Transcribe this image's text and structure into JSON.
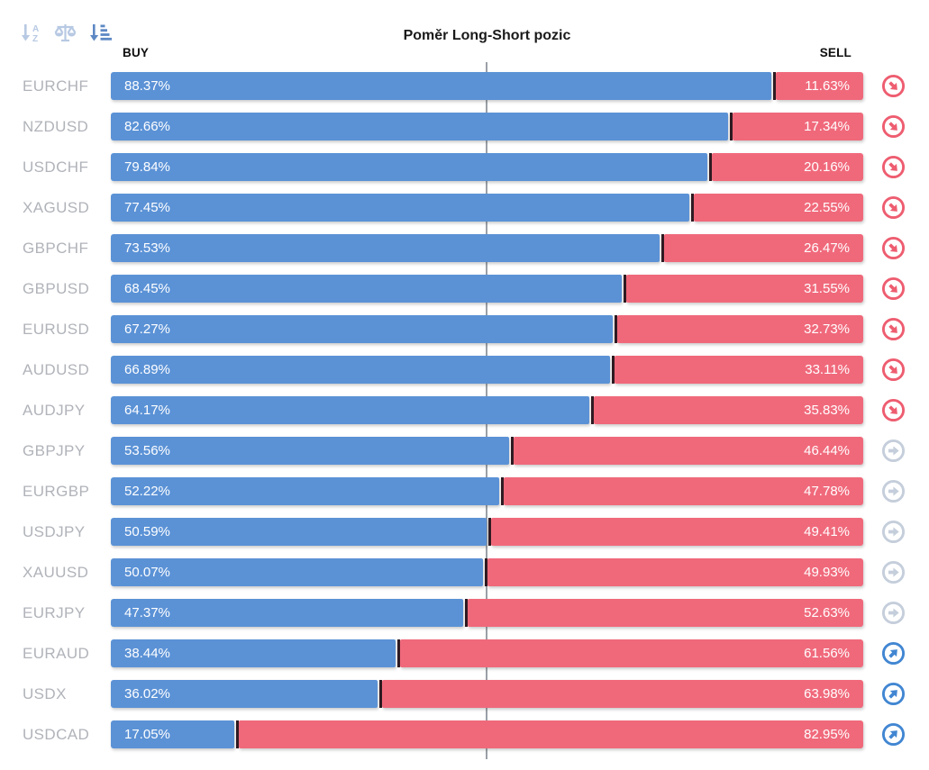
{
  "header": {
    "title": "Poměr Long-Short pozic",
    "buy_label": "BUY",
    "sell_label": "SELL",
    "sort_tools": [
      {
        "name": "sort-alphabetical",
        "active": false
      },
      {
        "name": "compare-balance",
        "active": false
      },
      {
        "name": "sort-by-amount",
        "active": true
      }
    ]
  },
  "colors": {
    "buy_bar": "#5b92d6",
    "sell_bar": "#f0697b",
    "bar_divider": "#2e1b22",
    "center_line": "#9aa0a6",
    "instrument_label": "#b0b3b9",
    "signal_down": "#ee5d70",
    "signal_flat": "#c5cedb",
    "signal_up": "#4186d2",
    "tool_inactive": "#b7c9e3",
    "tool_active": "#5d88c4"
  },
  "chart_data": {
    "type": "bar",
    "orientation": "horizontal-stacked",
    "title": "Poměr Long-Short pozic",
    "series_labels": [
      "BUY",
      "SELL"
    ],
    "xlim": [
      0,
      100
    ],
    "center_marker_pct": 50,
    "rows": [
      {
        "symbol": "EURCHF",
        "buy": 88.37,
        "sell": 11.63,
        "buy_text": "88.37%",
        "sell_text": "11.63%",
        "signal": "down"
      },
      {
        "symbol": "NZDUSD",
        "buy": 82.66,
        "sell": 17.34,
        "buy_text": "82.66%",
        "sell_text": "17.34%",
        "signal": "down"
      },
      {
        "symbol": "USDCHF",
        "buy": 79.84,
        "sell": 20.16,
        "buy_text": "79.84%",
        "sell_text": "20.16%",
        "signal": "down"
      },
      {
        "symbol": "XAGUSD",
        "buy": 77.45,
        "sell": 22.55,
        "buy_text": "77.45%",
        "sell_text": "22.55%",
        "signal": "down"
      },
      {
        "symbol": "GBPCHF",
        "buy": 73.53,
        "sell": 26.47,
        "buy_text": "73.53%",
        "sell_text": "26.47%",
        "signal": "down"
      },
      {
        "symbol": "GBPUSD",
        "buy": 68.45,
        "sell": 31.55,
        "buy_text": "68.45%",
        "sell_text": "31.55%",
        "signal": "down"
      },
      {
        "symbol": "EURUSD",
        "buy": 67.27,
        "sell": 32.73,
        "buy_text": "67.27%",
        "sell_text": "32.73%",
        "signal": "down"
      },
      {
        "symbol": "AUDUSD",
        "buy": 66.89,
        "sell": 33.11,
        "buy_text": "66.89%",
        "sell_text": "33.11%",
        "signal": "down"
      },
      {
        "symbol": "AUDJPY",
        "buy": 64.17,
        "sell": 35.83,
        "buy_text": "64.17%",
        "sell_text": "35.83%",
        "signal": "down"
      },
      {
        "symbol": "GBPJPY",
        "buy": 53.56,
        "sell": 46.44,
        "buy_text": "53.56%",
        "sell_text": "46.44%",
        "signal": "flat"
      },
      {
        "symbol": "EURGBP",
        "buy": 52.22,
        "sell": 47.78,
        "buy_text": "52.22%",
        "sell_text": "47.78%",
        "signal": "flat"
      },
      {
        "symbol": "USDJPY",
        "buy": 50.59,
        "sell": 49.41,
        "buy_text": "50.59%",
        "sell_text": "49.41%",
        "signal": "flat"
      },
      {
        "symbol": "XAUUSD",
        "buy": 50.07,
        "sell": 49.93,
        "buy_text": "50.07%",
        "sell_text": "49.93%",
        "signal": "flat"
      },
      {
        "symbol": "EURJPY",
        "buy": 47.37,
        "sell": 52.63,
        "buy_text": "47.37%",
        "sell_text": "52.63%",
        "signal": "flat"
      },
      {
        "symbol": "EURAUD",
        "buy": 38.44,
        "sell": 61.56,
        "buy_text": "38.44%",
        "sell_text": "61.56%",
        "signal": "up"
      },
      {
        "symbol": "USDX",
        "buy": 36.02,
        "sell": 63.98,
        "buy_text": "36.02%",
        "sell_text": "63.98%",
        "signal": "up"
      },
      {
        "symbol": "USDCAD",
        "buy": 17.05,
        "sell": 82.95,
        "buy_text": "17.05%",
        "sell_text": "82.95%",
        "signal": "up"
      }
    ]
  }
}
